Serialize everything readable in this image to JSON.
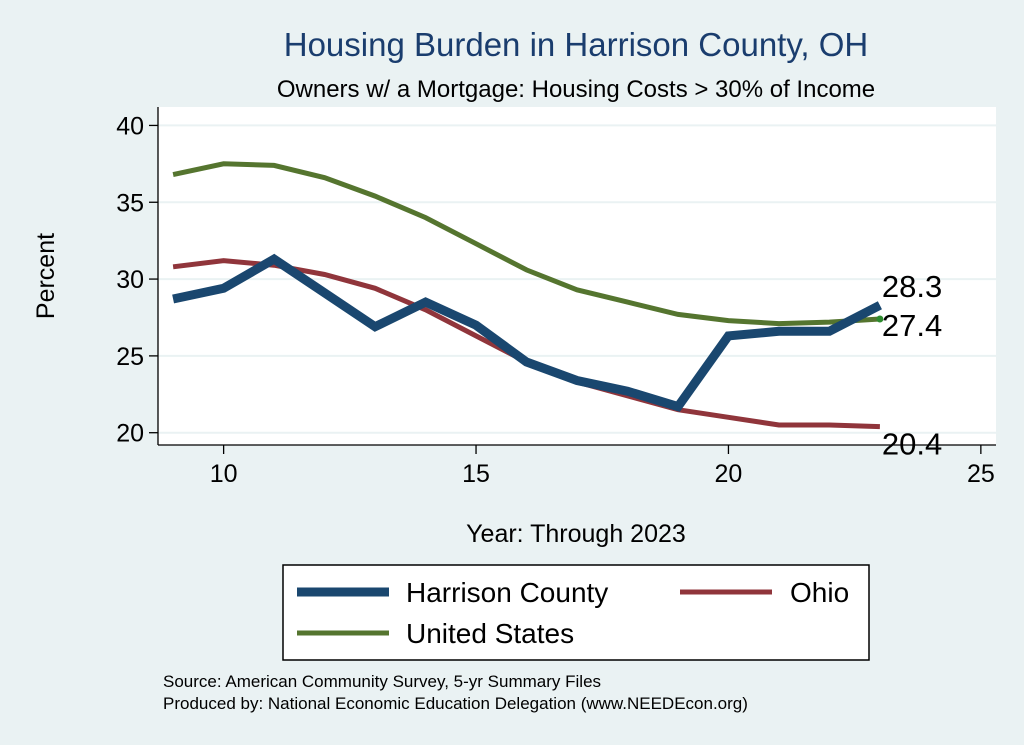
{
  "chart_data": {
    "type": "line",
    "title": "Housing Burden in Harrison County, OH",
    "subtitle": "Owners w/ a Mortgage: Housing Costs > 30% of Income",
    "xlabel": "Year: Through 2023",
    "ylabel": "Percent",
    "xlim": [
      8.7,
      25.3
    ],
    "ylim": [
      19.2,
      41.2
    ],
    "xticks": [
      10,
      15,
      20,
      25
    ],
    "yticks": [
      20,
      25,
      30,
      35,
      40
    ],
    "grid": true,
    "legend_position": "bottom",
    "series": [
      {
        "name": "Harrison County",
        "color": "#1a476f",
        "width": 9,
        "x": [
          9,
          10,
          11,
          12,
          13,
          14,
          15,
          16,
          17,
          18,
          19,
          20,
          21,
          22,
          23
        ],
        "values": [
          28.7,
          29.4,
          31.3,
          29.1,
          26.9,
          28.5,
          27.0,
          24.6,
          23.4,
          22.7,
          21.7,
          26.3,
          26.6,
          26.6,
          28.3
        ],
        "end_label": "28.3"
      },
      {
        "name": "Ohio",
        "color": "#90353b",
        "width": 5,
        "x": [
          9,
          10,
          11,
          12,
          13,
          14,
          15,
          16,
          17,
          18,
          19,
          20,
          21,
          22,
          23
        ],
        "values": [
          30.8,
          31.2,
          30.9,
          30.3,
          29.4,
          28.0,
          26.3,
          24.6,
          23.3,
          22.4,
          21.5,
          21.0,
          20.5,
          20.5,
          20.4
        ],
        "end_label": "20.4"
      },
      {
        "name": "United States",
        "color": "#55752f",
        "width": 5,
        "x": [
          9,
          10,
          11,
          12,
          13,
          14,
          15,
          16,
          17,
          18,
          19,
          20,
          21,
          22,
          23
        ],
        "values": [
          36.8,
          37.5,
          37.4,
          36.6,
          35.4,
          34.0,
          32.3,
          30.6,
          29.3,
          28.5,
          27.7,
          27.3,
          27.1,
          27.2,
          27.4
        ],
        "end_label": "27.4"
      }
    ],
    "source_lines": [
      "Source: American Community Survey, 5-yr Summary Files",
      "Produced by: National Economic Education Delegation (www.NEEDEcon.org)"
    ]
  }
}
